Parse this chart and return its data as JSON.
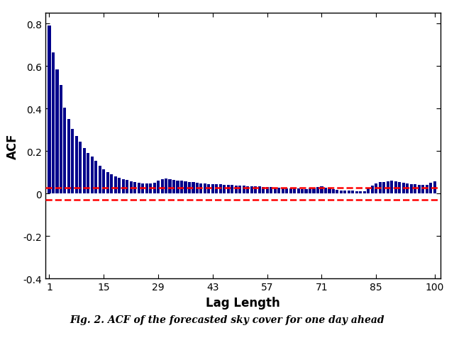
{
  "acf_values": [
    0.79,
    0.665,
    0.585,
    0.51,
    0.405,
    0.35,
    0.305,
    0.27,
    0.245,
    0.215,
    0.19,
    0.175,
    0.155,
    0.13,
    0.115,
    0.1,
    0.09,
    0.082,
    0.075,
    0.068,
    0.063,
    0.058,
    0.054,
    0.051,
    0.049,
    0.048,
    0.047,
    0.05,
    0.06,
    0.068,
    0.07,
    0.068,
    0.065,
    0.062,
    0.06,
    0.058,
    0.055,
    0.053,
    0.051,
    0.049,
    0.047,
    0.046,
    0.045,
    0.044,
    0.043,
    0.042,
    0.041,
    0.04,
    0.039,
    0.038,
    0.037,
    0.036,
    0.035,
    0.034,
    0.033,
    0.032,
    0.031,
    0.03,
    0.029,
    0.028,
    0.027,
    0.026,
    0.025,
    0.024,
    0.023,
    0.022,
    0.021,
    0.024,
    0.027,
    0.03,
    0.033,
    0.028,
    0.023,
    0.02,
    0.018,
    0.016,
    0.015,
    0.014,
    0.013,
    0.012,
    0.01,
    0.011,
    0.028,
    0.038,
    0.048,
    0.053,
    0.056,
    0.058,
    0.06,
    0.058,
    0.055,
    0.052,
    0.049,
    0.046,
    0.044,
    0.042,
    0.041,
    0.04,
    0.052,
    0.058
  ],
  "bar_color": "#00008B",
  "conf_upper": 0.028,
  "conf_lower": -0.028,
  "conf_color": "#FF0000",
  "ylabel": "ACF",
  "xlabel": "Lag Length",
  "xlim": [
    0.0,
    101.5
  ],
  "ylim": [
    -0.4,
    0.85
  ],
  "yticks": [
    -0.4,
    -0.2,
    0.0,
    0.2,
    0.4,
    0.6,
    0.8
  ],
  "xticks": [
    1,
    15,
    29,
    43,
    57,
    71,
    85,
    100
  ],
  "caption": "Fig. 2. ACF of the forecasted sky cover for one day ahead",
  "bar_width": 0.75,
  "background_color": "#FFFFFF",
  "ylabel_fontsize": 12,
  "xlabel_fontsize": 12,
  "tick_fontsize": 10,
  "caption_fontsize": 10,
  "conf_linewidth": 1.8,
  "conf_linestyle": "--"
}
